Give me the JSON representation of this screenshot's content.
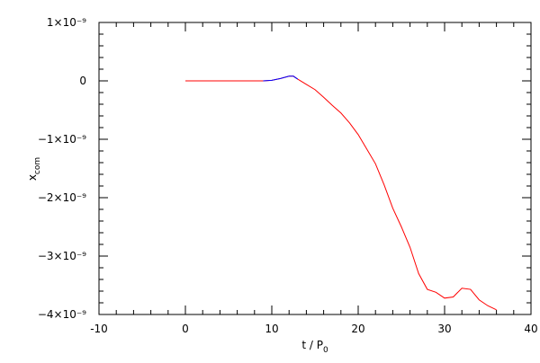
{
  "chart_data": {
    "type": "line",
    "xlabel": "t / P",
    "xlabel_sub": "0",
    "ylabel": "x",
    "ylabel_sub": "com",
    "xlim": [
      -10,
      40
    ],
    "xticks": [
      -10,
      0,
      10,
      20,
      30,
      40
    ],
    "ylim": [
      -4e-09,
      1e-09
    ],
    "yticks": [
      {
        "value": -4e-09,
        "label": "−4×10⁻⁹"
      },
      {
        "value": -3e-09,
        "label": "−3×10⁻⁹"
      },
      {
        "value": -2e-09,
        "label": "−2×10⁻⁹"
      },
      {
        "value": -1e-09,
        "label": "−1×10⁻⁹"
      },
      0,
      {
        "value": 1e-09,
        "label": "1×10⁻⁹"
      }
    ],
    "minor_ticks": 5,
    "series": [
      {
        "color": "#ff0000",
        "x": [
          0,
          9,
          10,
          11,
          12,
          12.5,
          13,
          14,
          15,
          16,
          17,
          18,
          19,
          20,
          21,
          22,
          23,
          24,
          25,
          26,
          27,
          28,
          29,
          30,
          31,
          32,
          33,
          34,
          35,
          36
        ],
        "values": [
          0,
          0,
          1e-11,
          4e-11,
          8e-11,
          8e-11,
          3e-11,
          -6e-11,
          -1.5e-10,
          -2.8e-10,
          -4.2e-10,
          -5.5e-10,
          -7.2e-10,
          -9.2e-10,
          -1.17e-09,
          -1.42e-09,
          -1.78e-09,
          -2.18e-09,
          -2.5e-09,
          -2.85e-09,
          -3.3e-09,
          -3.57e-09,
          -3.62e-09,
          -3.72e-09,
          -3.7e-09,
          -3.55e-09,
          -3.57e-09,
          -3.75e-09,
          -3.85e-09,
          -3.92e-09
        ]
      },
      {
        "color": "#0000ff",
        "x": [
          9,
          10,
          11,
          12,
          12.5,
          13
        ],
        "values": [
          0,
          1e-11,
          4e-11,
          8e-11,
          8e-11,
          3e-11
        ]
      }
    ]
  }
}
